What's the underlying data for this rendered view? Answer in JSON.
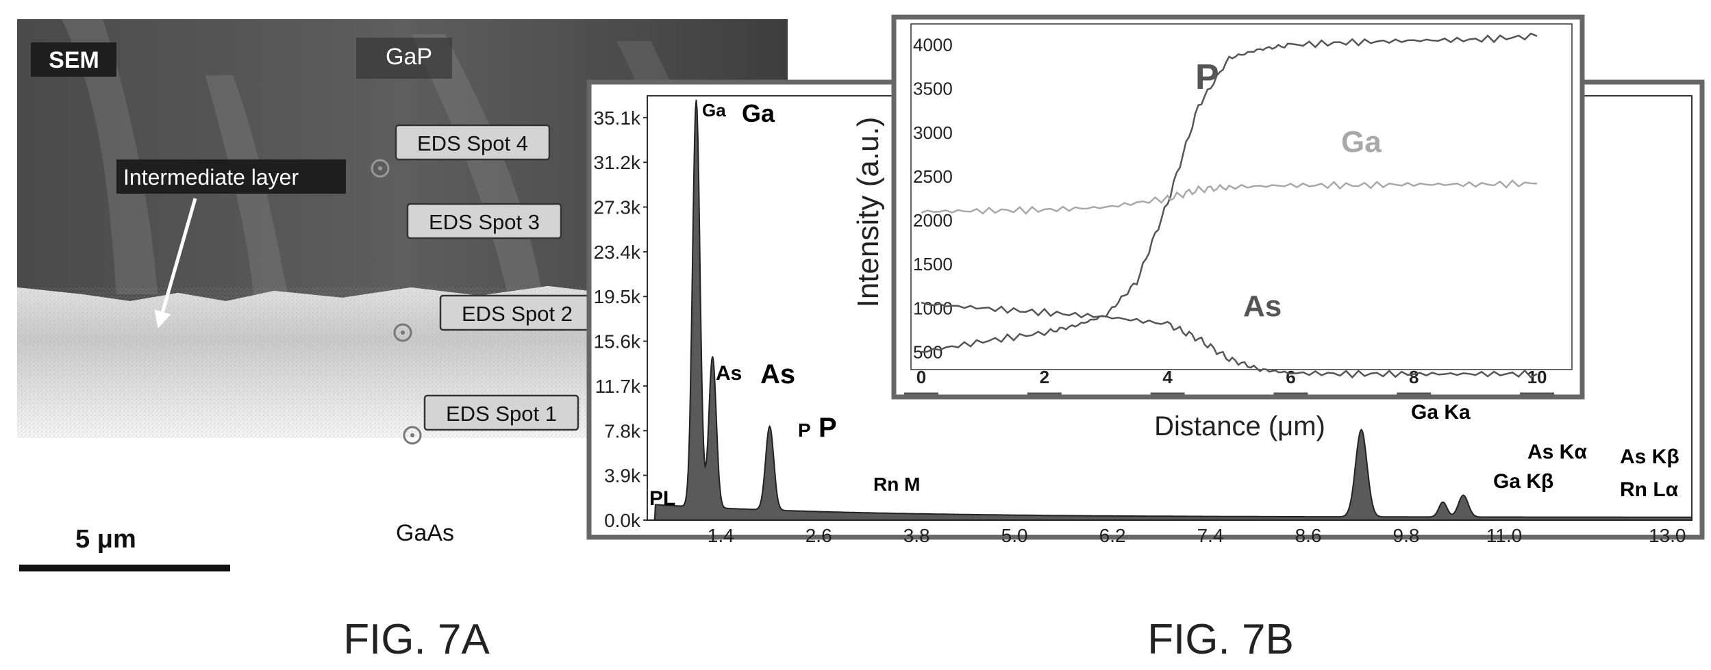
{
  "sem_panel": {
    "badge": "SEM",
    "top_material": "GaP",
    "bottom_material": "GaAs",
    "layer_label": "Intermediate layer",
    "scale_bar_label": "5 μm",
    "spots": [
      "EDS Spot 4",
      "EDS Spot 3",
      "EDS Spot 2",
      "EDS Spot 1"
    ]
  },
  "captions": {
    "fig_a": "FIG. 7A",
    "fig_b": "FIG. 7B"
  },
  "chart_data": [
    {
      "type": "area",
      "title": "",
      "xlabel": "",
      "ylabel": "",
      "x_ticks": [
        "1.4",
        "2.6",
        "3.8",
        "5.0",
        "6.2",
        "7.4",
        "8.6",
        "9.8",
        "11.0",
        "13.0"
      ],
      "y_ticks": [
        "0.0k",
        "3.9k",
        "7.8k",
        "11.7k",
        "15.6k",
        "19.5k",
        "23.4k",
        "27.3k",
        "31.2k",
        "35.1k"
      ],
      "ylim": [
        0,
        37000
      ],
      "peaks": [
        {
          "energy": 1.1,
          "counts": 35500
        },
        {
          "energy": 1.3,
          "counts": 13200
        },
        {
          "energy": 2.0,
          "counts": 7300
        },
        {
          "energy": 9.25,
          "counts": 7600
        },
        {
          "energy": 10.25,
          "counts": 1300
        },
        {
          "energy": 10.5,
          "counts": 1900
        }
      ],
      "peak_labels": {
        "pl": "PL",
        "ga_small": "Ga",
        "ga_big": "Ga",
        "as_small": "As",
        "as_big": "As",
        "p_small": "P",
        "p_big": "P",
        "rn_m": "Rn M",
        "ga_ka": "Ga Ka",
        "ga_kb": "Ga Kβ",
        "as_ka": "As Kα",
        "as_kb": "As Kβ",
        "rn_la": "Rn Lα"
      }
    },
    {
      "type": "line",
      "title": "",
      "xlabel": "Distance (μm)",
      "ylabel": "Intensity (a.u.)",
      "x_ticks": [
        "0",
        "2",
        "4",
        "6",
        "8",
        "10"
      ],
      "y_ticks": [
        "500",
        "1000",
        "1500",
        "2000",
        "2500",
        "3000",
        "3500",
        "4000"
      ],
      "xlim": [
        0,
        10.4
      ],
      "ylim": [
        300,
        4200
      ],
      "grid": false,
      "series": [
        {
          "name": "P",
          "color": "#555555",
          "x": [
            0,
            1,
            2,
            2.5,
            3,
            3.5,
            4,
            4.5,
            5,
            5.5,
            6,
            7,
            8,
            9,
            10
          ],
          "y": [
            500,
            620,
            720,
            800,
            920,
            1300,
            2200,
            3300,
            3850,
            3950,
            4000,
            4030,
            4050,
            4060,
            4100
          ]
        },
        {
          "name": "Ga",
          "color": "#a8a8a8",
          "x": [
            0,
            1,
            2,
            3,
            4,
            4.5,
            5,
            6,
            7,
            8,
            9,
            10
          ],
          "y": [
            2100,
            2110,
            2120,
            2150,
            2250,
            2350,
            2380,
            2400,
            2400,
            2410,
            2410,
            2420
          ]
        },
        {
          "name": "As",
          "color": "#555555",
          "x": [
            0,
            1,
            2,
            3,
            4,
            4.5,
            5,
            5.5,
            6,
            7,
            8,
            9,
            10
          ],
          "y": [
            1050,
            1000,
            950,
            900,
            820,
            650,
            420,
            300,
            260,
            250,
            250,
            250,
            250
          ]
        }
      ]
    }
  ]
}
